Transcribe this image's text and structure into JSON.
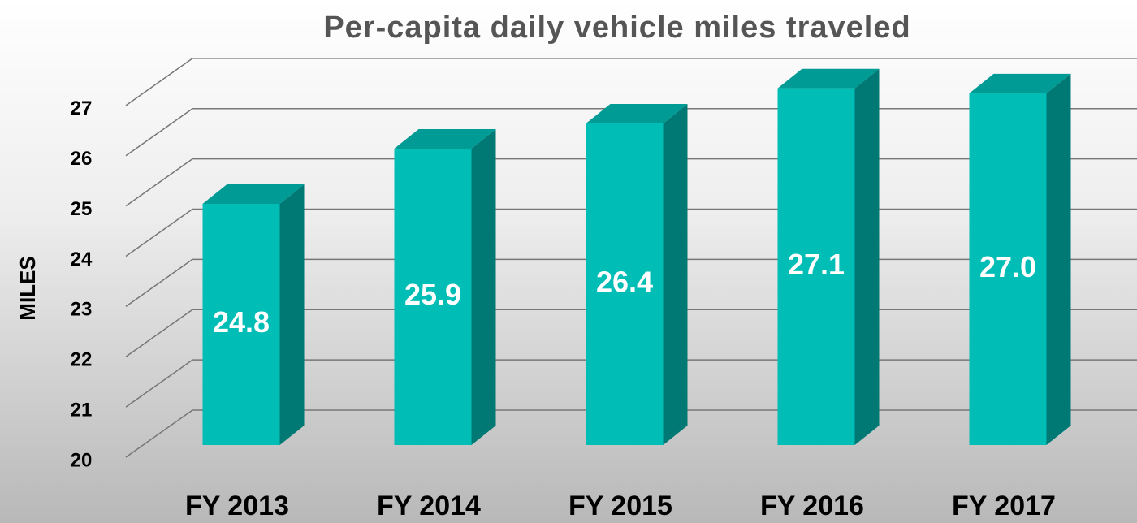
{
  "chart_data": {
    "type": "bar3d",
    "title": "Per-capita daily vehicle miles traveled",
    "y_label": "MILES",
    "categories": [
      "FY 2013",
      "FY 2014",
      "FY 2015",
      "FY 2016",
      "FY 2017"
    ],
    "values": [
      24.8,
      25.9,
      26.4,
      27.1,
      27.0
    ],
    "value_labels": [
      "24.8",
      "25.9",
      "26.4",
      "27.1",
      "27.0"
    ],
    "color": "#00bdb5",
    "ylim": [
      20,
      28
    ],
    "yticks": [
      20,
      21,
      22,
      23,
      24,
      25,
      26,
      27
    ],
    "grid": true
  }
}
